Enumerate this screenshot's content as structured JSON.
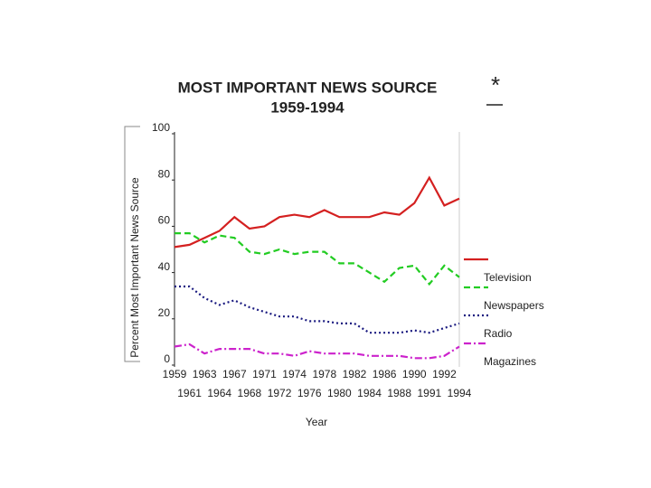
{
  "chart_data": {
    "type": "line",
    "title": "MOST IMPORTANT NEWS SOURCE",
    "subtitle": "1959-1994",
    "annotations": [
      "*"
    ],
    "xlabel": "Year",
    "ylabel": "Percent Most Important News Source",
    "categories": [
      "1959",
      "1961",
      "1963",
      "1964",
      "1967",
      "1968",
      "1971",
      "1972",
      "1974",
      "1976",
      "1978",
      "1980",
      "1982",
      "1984",
      "1986",
      "1988",
      "1990",
      "1991",
      "1992",
      "1994"
    ],
    "series": [
      {
        "name": "Television",
        "color": "#d42020",
        "dash": "none",
        "values": [
          51,
          52,
          55,
          58,
          64,
          59,
          60,
          64,
          65,
          64,
          67,
          64,
          64,
          64,
          66,
          65,
          70,
          81,
          69,
          72
        ]
      },
      {
        "name": "Newspapers",
        "color": "#22cc22",
        "dash": "7 4",
        "values": [
          57,
          57,
          53,
          56,
          55,
          49,
          48,
          50,
          48,
          49,
          49,
          44,
          44,
          40,
          36,
          42,
          43,
          35,
          43,
          38
        ]
      },
      {
        "name": "Radio",
        "color": "#1a1a80",
        "dash": "2 3",
        "values": [
          34,
          34,
          29,
          26,
          28,
          25,
          23,
          21,
          21,
          19,
          19,
          18,
          18,
          14,
          14,
          14,
          15,
          14,
          16,
          18
        ]
      },
      {
        "name": "Magazines",
        "color": "#cc22cc",
        "dash": "8 3 2 3",
        "values": [
          8,
          9,
          5,
          7,
          7,
          7,
          5,
          5,
          4,
          6,
          5,
          5,
          5,
          4,
          4,
          4,
          3,
          3,
          4,
          8
        ]
      }
    ],
    "ylim": [
      0,
      100
    ],
    "yticks": [
      0,
      20,
      40,
      60,
      80,
      100
    ],
    "grid": false,
    "legend": "right"
  }
}
